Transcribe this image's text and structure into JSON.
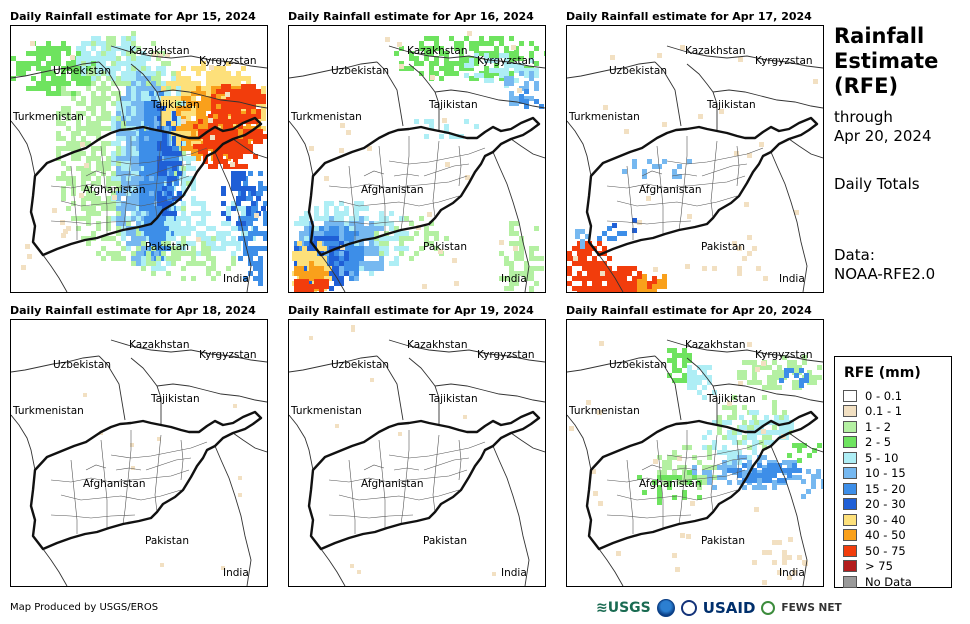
{
  "panels": [
    {
      "title": "Daily Rainfall estimate for Apr 15, 2024",
      "pattern": "apr15"
    },
    {
      "title": "Daily Rainfall estimate for Apr 16, 2024",
      "pattern": "apr16"
    },
    {
      "title": "Daily Rainfall estimate for Apr 17, 2024",
      "pattern": "apr17"
    },
    {
      "title": "Daily Rainfall estimate for Apr 18, 2024",
      "pattern": "none"
    },
    {
      "title": "Daily Rainfall estimate for Apr 19, 2024",
      "pattern": "none"
    },
    {
      "title": "Daily Rainfall estimate for Apr 20, 2024",
      "pattern": "apr20"
    }
  ],
  "map_labels": {
    "kazakhstan": "Kazakhstan",
    "kyrgyzstan": "Kyrgyzstan",
    "uzbekistan": "Uzbekistan",
    "tajikistan": "Tajikistan",
    "turkmenistan": "Turkmenistan",
    "afghanistan": "Afghanistan",
    "pakistan": "Pakistan",
    "india": "India"
  },
  "sidebar": {
    "title_lines": [
      "Rainfall",
      "Estimate",
      "(RFE)"
    ],
    "through_line1": "through",
    "through_line2": "Apr 20, 2024",
    "totals": "Daily Totals",
    "data_line1": "Data:",
    "data_line2": "NOAA-RFE2.0"
  },
  "legend": {
    "title": "RFE (mm)",
    "items": [
      {
        "label": "0 - 0.1",
        "color": "#ffffff"
      },
      {
        "label": "0.1 - 1",
        "color": "#f2e0c2"
      },
      {
        "label": "1 - 2",
        "color": "#b4f0a2"
      },
      {
        "label": "2 - 5",
        "color": "#6ee35f"
      },
      {
        "label": "5 - 10",
        "color": "#aeeef5"
      },
      {
        "label": "10 - 15",
        "color": "#76b8f0"
      },
      {
        "label": "15 - 20",
        "color": "#3d8ee8"
      },
      {
        "label": "20 - 30",
        "color": "#1f5fd6"
      },
      {
        "label": "30 - 40",
        "color": "#fde07a"
      },
      {
        "label": "40 - 50",
        "color": "#f9a01b"
      },
      {
        "label": "50 - 75",
        "color": "#f23d0c"
      },
      {
        "label": "> 75",
        "color": "#b21c1c"
      },
      {
        "label": "No Data",
        "color": "#9a9a9a"
      }
    ]
  },
  "footer": {
    "produced_by": "Map Produced by USGS/EROS",
    "logo_usgs": "≋USGS",
    "logo_usaid": "USAID",
    "logo_fews": "FEWS NET"
  }
}
